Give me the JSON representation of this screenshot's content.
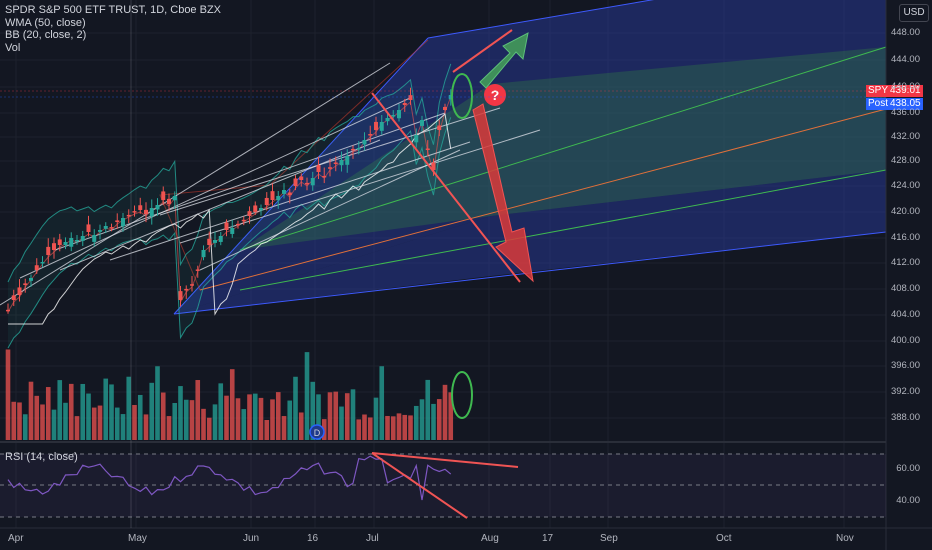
{
  "legend": {
    "title": "SPDR S&P 500 ETF TRUST, 1D, Cboe BZX",
    "wma": "WMA (50, close)",
    "bb": "BB (20, close, 2)",
    "vol": "Vol"
  },
  "rsi_label": "RSI (14, close)",
  "currency": "USD",
  "tags": [
    {
      "name": "SPY",
      "value": "439.01",
      "color": "#f23645"
    },
    {
      "name": "Post",
      "value": "438.05",
      "color": "#2962ff"
    }
  ],
  "dividend_marker": "D",
  "question_marker": "?",
  "chart_data": {
    "type": "candlestick",
    "price_axis": {
      "ticks": [
        "448.00",
        "444.00",
        "440.00",
        "436.00",
        "432.00",
        "428.00",
        "424.00",
        "420.00",
        "416.00",
        "412.00",
        "408.00",
        "404.00",
        "400.00",
        "396.00",
        "392.00",
        "388.00"
      ],
      "range": [
        386,
        451
      ]
    },
    "rsi_axis": {
      "ticks": [
        "60.00",
        "40.00"
      ]
    },
    "time_axis": {
      "ticks": [
        "Apr",
        "May",
        "Jun",
        "16",
        "Jul",
        "Aug",
        "17",
        "Sep",
        "Oct",
        "Nov"
      ]
    },
    "last_price": 439.01,
    "post_price": 438.05
  },
  "colors": {
    "up": "#26a69a",
    "down": "#ef5350",
    "bg": "#131722",
    "arrow_green": "#3f8f5a",
    "arrow_red": "#d93a3a"
  }
}
